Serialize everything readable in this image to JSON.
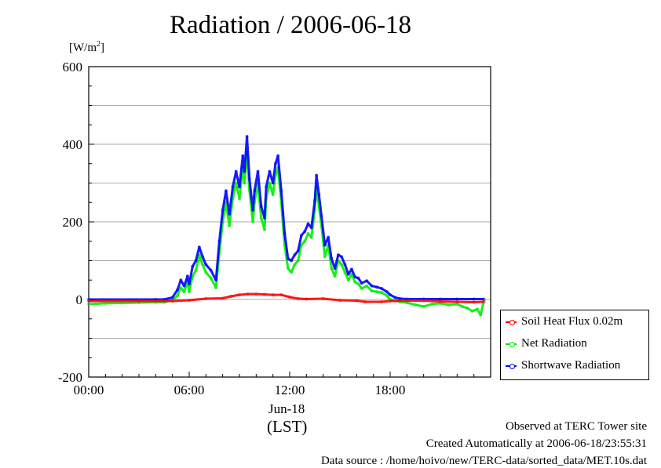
{
  "chart_data": {
    "type": "line",
    "title": "Radiation / 2006-06-18",
    "ylabel_unit": "[W/m",
    "ylabel_unit_sup": "2",
    "ylabel_unit_close": "]",
    "x_date_label": "Jun-18",
    "x_timezone_label": "(LST)",
    "ylim": [
      -200,
      600
    ],
    "xlim_hours": [
      0,
      24
    ],
    "x_ticks": [
      {
        "hour": 0,
        "label": "00:00"
      },
      {
        "hour": 6,
        "label": "06:00"
      },
      {
        "hour": 12,
        "label": "12:00"
      },
      {
        "hour": 18,
        "label": "18:00"
      }
    ],
    "y_ticks": [
      {
        "value": -200,
        "label": "-200"
      },
      {
        "value": 0,
        "label": "0"
      },
      {
        "value": 200,
        "label": "200"
      },
      {
        "value": 400,
        "label": "400"
      },
      {
        "value": 600,
        "label": "600"
      }
    ],
    "grid": true,
    "legend_position": "right, below plot",
    "series": [
      {
        "name": "Soil Heat Flux 0.02m",
        "color": "#ff0000",
        "points": [
          [
            0,
            -4
          ],
          [
            3,
            -4
          ],
          [
            5,
            -4
          ],
          [
            6,
            -2
          ],
          [
            7,
            2
          ],
          [
            8,
            3
          ],
          [
            8.5,
            8
          ],
          [
            9,
            12
          ],
          [
            9.5,
            14
          ],
          [
            10,
            14
          ],
          [
            10.5,
            13
          ],
          [
            11,
            12
          ],
          [
            11.5,
            12
          ],
          [
            12,
            6
          ],
          [
            12.5,
            2
          ],
          [
            13,
            1
          ],
          [
            14,
            2
          ],
          [
            15,
            -2
          ],
          [
            16,
            -3
          ],
          [
            16.5,
            -6
          ],
          [
            17.5,
            -6
          ],
          [
            18,
            -4
          ],
          [
            19,
            -3
          ],
          [
            20,
            -3
          ],
          [
            21,
            -5
          ],
          [
            22,
            -6
          ],
          [
            23,
            -7
          ],
          [
            23.6,
            -6
          ]
        ]
      },
      {
        "name": "Net Radiation",
        "color": "#00ee00",
        "points": [
          [
            0,
            -12
          ],
          [
            1,
            -10
          ],
          [
            2,
            -9
          ],
          [
            3,
            -8
          ],
          [
            4,
            -7
          ],
          [
            4.5,
            -7
          ],
          [
            5,
            -2
          ],
          [
            5.3,
            10
          ],
          [
            5.5,
            30
          ],
          [
            5.7,
            20
          ],
          [
            5.9,
            45
          ],
          [
            6,
            20
          ],
          [
            6.2,
            60
          ],
          [
            6.4,
            75
          ],
          [
            6.6,
            115
          ],
          [
            6.8,
            90
          ],
          [
            7,
            70
          ],
          [
            7.3,
            55
          ],
          [
            7.6,
            30
          ],
          [
            7.8,
            120
          ],
          [
            8,
            200
          ],
          [
            8.2,
            250
          ],
          [
            8.4,
            190
          ],
          [
            8.6,
            260
          ],
          [
            8.8,
            300
          ],
          [
            9,
            260
          ],
          [
            9.2,
            340
          ],
          [
            9.3,
            300
          ],
          [
            9.45,
            380
          ],
          [
            9.6,
            280
          ],
          [
            9.8,
            200
          ],
          [
            9.9,
            250
          ],
          [
            10.1,
            300
          ],
          [
            10.3,
            210
          ],
          [
            10.5,
            180
          ],
          [
            10.6,
            260
          ],
          [
            10.8,
            300
          ],
          [
            11,
            270
          ],
          [
            11.15,
            320
          ],
          [
            11.3,
            340
          ],
          [
            11.5,
            250
          ],
          [
            11.7,
            140
          ],
          [
            11.9,
            80
          ],
          [
            12.1,
            70
          ],
          [
            12.3,
            90
          ],
          [
            12.5,
            100
          ],
          [
            12.7,
            140
          ],
          [
            12.9,
            150
          ],
          [
            13.1,
            170
          ],
          [
            13.3,
            160
          ],
          [
            13.5,
            230
          ],
          [
            13.6,
            290
          ],
          [
            13.75,
            240
          ],
          [
            13.9,
            190
          ],
          [
            14.1,
            110
          ],
          [
            14.3,
            140
          ],
          [
            14.5,
            80
          ],
          [
            14.7,
            60
          ],
          [
            14.9,
            100
          ],
          [
            15.1,
            90
          ],
          [
            15.3,
            70
          ],
          [
            15.5,
            50
          ],
          [
            15.7,
            65
          ],
          [
            15.9,
            45
          ],
          [
            16.1,
            40
          ],
          [
            16.3,
            28
          ],
          [
            16.6,
            35
          ],
          [
            16.9,
            22
          ],
          [
            17.2,
            20
          ],
          [
            17.5,
            18
          ],
          [
            17.8,
            10
          ],
          [
            18,
            0
          ],
          [
            18.3,
            -3
          ],
          [
            18.6,
            -6
          ],
          [
            19,
            -8
          ],
          [
            19.5,
            -14
          ],
          [
            20,
            -18
          ],
          [
            20.5,
            -12
          ],
          [
            21,
            -10
          ],
          [
            21.5,
            -14
          ],
          [
            22,
            -12
          ],
          [
            22.3,
            -18
          ],
          [
            22.6,
            -22
          ],
          [
            22.9,
            -30
          ],
          [
            23.2,
            -25
          ],
          [
            23.4,
            -40
          ],
          [
            23.6,
            -2
          ]
        ]
      },
      {
        "name": "Shortwave Radiation",
        "color": "#0000ff",
        "points": [
          [
            0,
            0
          ],
          [
            4,
            0
          ],
          [
            4.5,
            0
          ],
          [
            5,
            5
          ],
          [
            5.3,
            25
          ],
          [
            5.5,
            50
          ],
          [
            5.7,
            35
          ],
          [
            5.9,
            60
          ],
          [
            6,
            40
          ],
          [
            6.2,
            85
          ],
          [
            6.4,
            100
          ],
          [
            6.6,
            135
          ],
          [
            6.8,
            110
          ],
          [
            7,
            90
          ],
          [
            7.3,
            75
          ],
          [
            7.6,
            50
          ],
          [
            7.8,
            150
          ],
          [
            8,
            230
          ],
          [
            8.2,
            280
          ],
          [
            8.4,
            220
          ],
          [
            8.6,
            290
          ],
          [
            8.8,
            330
          ],
          [
            9,
            290
          ],
          [
            9.2,
            370
          ],
          [
            9.3,
            330
          ],
          [
            9.45,
            420
          ],
          [
            9.6,
            310
          ],
          [
            9.8,
            230
          ],
          [
            9.9,
            280
          ],
          [
            10.1,
            330
          ],
          [
            10.3,
            240
          ],
          [
            10.5,
            210
          ],
          [
            10.6,
            290
          ],
          [
            10.8,
            330
          ],
          [
            11,
            300
          ],
          [
            11.15,
            350
          ],
          [
            11.3,
            370
          ],
          [
            11.5,
            280
          ],
          [
            11.7,
            170
          ],
          [
            11.9,
            105
          ],
          [
            12.1,
            100
          ],
          [
            12.3,
            115
          ],
          [
            12.5,
            125
          ],
          [
            12.7,
            165
          ],
          [
            12.9,
            175
          ],
          [
            13.1,
            195
          ],
          [
            13.3,
            185
          ],
          [
            13.5,
            255
          ],
          [
            13.6,
            320
          ],
          [
            13.75,
            270
          ],
          [
            13.9,
            215
          ],
          [
            14.1,
            140
          ],
          [
            14.3,
            160
          ],
          [
            14.5,
            105
          ],
          [
            14.7,
            80
          ],
          [
            14.9,
            115
          ],
          [
            15.1,
            110
          ],
          [
            15.3,
            90
          ],
          [
            15.5,
            65
          ],
          [
            15.7,
            78
          ],
          [
            15.9,
            58
          ],
          [
            16.1,
            55
          ],
          [
            16.3,
            42
          ],
          [
            16.6,
            48
          ],
          [
            16.9,
            35
          ],
          [
            17.2,
            32
          ],
          [
            17.5,
            28
          ],
          [
            17.8,
            20
          ],
          [
            18,
            12
          ],
          [
            18.3,
            5
          ],
          [
            18.6,
            2
          ],
          [
            19,
            1
          ],
          [
            20,
            1
          ],
          [
            21,
            1
          ],
          [
            22,
            1
          ],
          [
            23,
            1
          ],
          [
            23.6,
            1
          ]
        ]
      }
    ]
  },
  "footer": {
    "line1": "Observed at TERC Tower site",
    "line2": "Created Automatically at 2006-06-18/23:55:31",
    "line3": "Data source : /home/hoivo/new/TERC-data/sorted_data/MET.10s.dat"
  }
}
